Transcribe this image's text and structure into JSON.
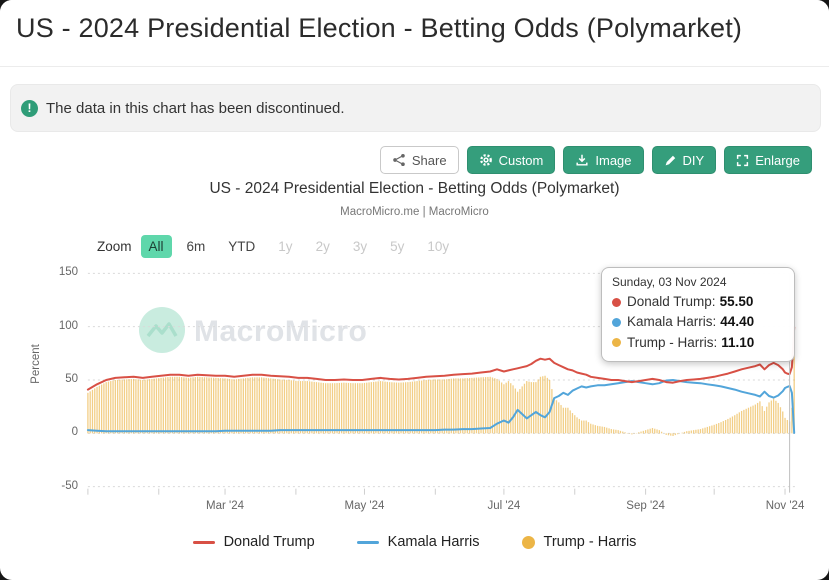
{
  "page": {
    "title": "US - 2024 Presidential Election - Betting Odds (Polymarket)",
    "alert": {
      "text": "The data in this chart has been discontinued."
    },
    "toolbar": {
      "share": "Share",
      "custom": "Custom",
      "image": "Image",
      "diy": "DIY",
      "enlarge": "Enlarge"
    }
  },
  "chart": {
    "title": "US - 2024 Presidential Election - Betting Odds (Polymarket)",
    "subtitle": "MacroMicro.me | MacroMicro",
    "watermark_text": "MacroMicro",
    "zoom_label": "Zoom",
    "zoom_options": [
      {
        "label": "All",
        "selected": true,
        "enabled": true
      },
      {
        "label": "6m",
        "selected": false,
        "enabled": true
      },
      {
        "label": "YTD",
        "selected": false,
        "enabled": true
      },
      {
        "label": "1y",
        "selected": false,
        "enabled": false
      },
      {
        "label": "2y",
        "selected": false,
        "enabled": false
      },
      {
        "label": "3y",
        "selected": false,
        "enabled": false
      },
      {
        "label": "5y",
        "selected": false,
        "enabled": false
      },
      {
        "label": "10y",
        "selected": false,
        "enabled": false
      }
    ],
    "tooltip": {
      "date": "Sunday, 03 Nov 2024",
      "rows": [
        {
          "label": "Donald Trump",
          "value": "55.50",
          "color": "#d85045"
        },
        {
          "label": "Kamala Harris",
          "value": "44.40",
          "color": "#52a5da"
        },
        {
          "label": "Trump - Harris",
          "value": "11.10",
          "color": "#ecb546"
        }
      ]
    },
    "legend": [
      {
        "label": "Donald Trump",
        "color": "#d85045",
        "swatch": "line"
      },
      {
        "label": "Kamala Harris",
        "color": "#52a5da",
        "swatch": "line"
      },
      {
        "label": "Trump - Harris",
        "color": "#ecb546",
        "swatch": "circle"
      }
    ],
    "colors": {
      "accent_green": "#359e7c",
      "selected_mint": "#5fd7ab",
      "alert_icon_green": "#2f9d78"
    }
  },
  "chart_data": {
    "type": "line",
    "title": "US - 2024 Presidential Election - Betting Odds (Polymarket)",
    "subtitle": "MacroMicro.me | MacroMicro",
    "xlabel": "",
    "ylabel": "Percent",
    "ylim": [
      -50,
      150
    ],
    "y_ticks": [
      150,
      100,
      50,
      0,
      -50
    ],
    "x_unit": "days_since_2024-01-01",
    "x_range_dates": [
      "2024-01-01",
      "2024-11-05"
    ],
    "x_tick_labels": [
      {
        "day": 60,
        "label": "Mar '24"
      },
      {
        "day": 121,
        "label": "May '24"
      },
      {
        "day": 182,
        "label": "Jul '24"
      },
      {
        "day": 244,
        "label": "Sep '24"
      },
      {
        "day": 305,
        "label": "Nov '24"
      }
    ],
    "month_tick_days": [
      0,
      31,
      60,
      91,
      121,
      152,
      182,
      213,
      244,
      274,
      305
    ],
    "grid": "horizontal-dashed",
    "legend_position": "bottom",
    "crosshair": {
      "day": 307,
      "date": "Sunday, 03 Nov 2024",
      "values": {
        "Donald Trump": 55.5,
        "Kamala Harris": 44.4,
        "Trump - Harris": 11.1
      }
    },
    "x": [
      0,
      4,
      8,
      12,
      16,
      20,
      24,
      28,
      32,
      36,
      40,
      44,
      48,
      52,
      56,
      60,
      64,
      68,
      72,
      76,
      80,
      84,
      88,
      92,
      96,
      100,
      104,
      108,
      112,
      116,
      120,
      124,
      128,
      132,
      136,
      140,
      144,
      148,
      152,
      156,
      160,
      164,
      168,
      172,
      176,
      179,
      182,
      184,
      186,
      188,
      190,
      192,
      194,
      196,
      198,
      200,
      202,
      204,
      206,
      208,
      210,
      212,
      214,
      216,
      218,
      220,
      223,
      226,
      229,
      232,
      235,
      238,
      241,
      244,
      247,
      250,
      253,
      256,
      259,
      262,
      265,
      268,
      271,
      274,
      277,
      280,
      283,
      286,
      289,
      292,
      294,
      296,
      298,
      300,
      302,
      304,
      305,
      306,
      307,
      308,
      309
    ],
    "series": [
      {
        "name": "Donald Trump",
        "type": "line",
        "color": "#d85045",
        "values": [
          41,
          46,
          50,
          52,
          52.5,
          53,
          52,
          53,
          54,
          55,
          55,
          54,
          55,
          54.5,
          54,
          54,
          53,
          54,
          55,
          55,
          54,
          53.5,
          53,
          52,
          52,
          51,
          50,
          50,
          50.5,
          50,
          50,
          51,
          52,
          51,
          50.5,
          51,
          52,
          53,
          53.5,
          54,
          55,
          55.5,
          56,
          57,
          58,
          60,
          58,
          59,
          60,
          61,
          62,
          63,
          65,
          68,
          70,
          69,
          70,
          66,
          64,
          62,
          60,
          59,
          57,
          56,
          55,
          53,
          52,
          51,
          50,
          50,
          49,
          48,
          49,
          50,
          51,
          50,
          48,
          47.5,
          49,
          50,
          50.5,
          51,
          52,
          53,
          54.5,
          56,
          58,
          60,
          61.5,
          63,
          64.5,
          60,
          64,
          66,
          64,
          60,
          57,
          56,
          55.5,
          62,
          99.5
        ]
      },
      {
        "name": "Kamala Harris",
        "type": "line",
        "color": "#52a5da",
        "values": [
          3,
          2.5,
          2,
          2,
          2,
          2,
          2,
          2,
          2,
          2,
          2,
          2,
          2,
          2,
          2,
          2.5,
          2.5,
          2.5,
          2.5,
          2.5,
          2.5,
          3,
          3,
          3,
          3,
          3,
          3,
          3,
          3,
          3,
          3,
          3,
          3,
          3,
          3,
          3,
          3,
          3,
          3,
          3.5,
          3.5,
          4,
          4,
          4.5,
          5,
          9,
          12,
          10,
          15,
          22,
          18,
          14,
          17,
          20,
          17,
          15,
          20,
          33,
          35,
          38,
          36,
          40,
          42,
          44,
          43,
          44,
          45,
          45,
          46,
          47,
          48,
          49,
          48,
          47,
          46,
          47,
          49.5,
          50,
          49,
          48,
          47.5,
          47,
          46,
          45,
          44,
          42.5,
          41,
          39,
          37.5,
          36,
          34.5,
          39,
          35,
          33.5,
          35.5,
          39.5,
          42.5,
          43.5,
          44.4,
          38,
          0.4
        ]
      },
      {
        "name": "Trump - Harris",
        "type": "column",
        "color": "#ecb546",
        "values": [
          38,
          43.5,
          48,
          50,
          50.5,
          51,
          50,
          51,
          52,
          53,
          53,
          52,
          53,
          52.5,
          52,
          51.5,
          50.5,
          51.5,
          52.5,
          52.5,
          51.5,
          50.5,
          50,
          49,
          49,
          48,
          47,
          47,
          47.5,
          47,
          47,
          48,
          49,
          48,
          47.5,
          48,
          49,
          50,
          50.5,
          50.5,
          51.5,
          51.5,
          52,
          52.5,
          53,
          51,
          46,
          49,
          45,
          39,
          44,
          49,
          48,
          48,
          53,
          54,
          50,
          33,
          29,
          24,
          24,
          19,
          15,
          12,
          12,
          9,
          7,
          6,
          4,
          3,
          1,
          -1,
          1,
          3,
          5,
          3,
          -1.5,
          -2.5,
          0,
          2,
          3,
          4,
          6,
          8,
          10.5,
          13.5,
          17,
          21,
          24,
          27,
          30,
          21,
          29,
          32.5,
          28.5,
          20.5,
          14.5,
          12.5,
          11.1,
          24,
          99.1
        ]
      }
    ]
  }
}
